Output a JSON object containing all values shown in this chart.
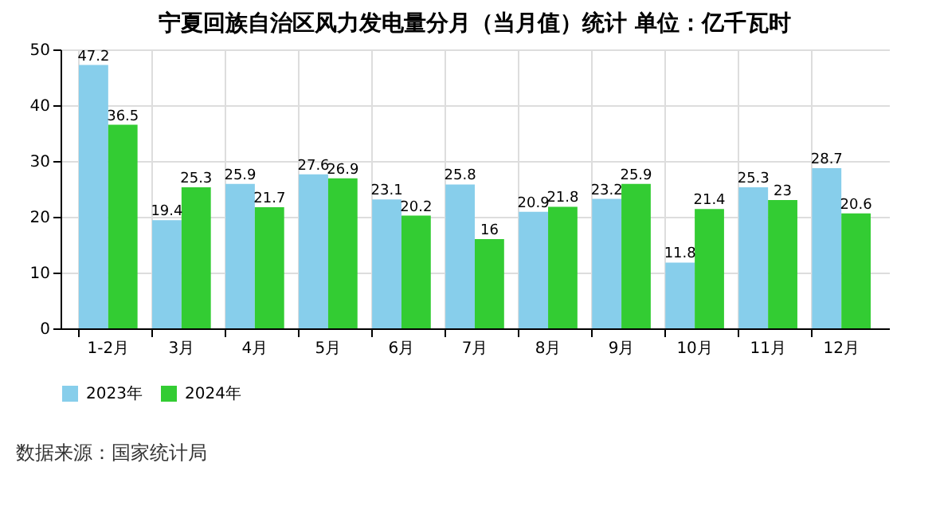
{
  "chart_data": {
    "type": "bar",
    "title": "宁夏回族自治区风力发电量分月（当月值）统计  单位：亿千瓦时",
    "categories": [
      "1-2月",
      "3月",
      "4月",
      "5月",
      "6月",
      "7月",
      "8月",
      "9月",
      "10月",
      "11月",
      "12月"
    ],
    "series": [
      {
        "name": "2023年",
        "color": "#87ceeb",
        "values": [
          47.2,
          19.4,
          25.9,
          27.6,
          23.1,
          25.8,
          20.9,
          23.2,
          11.8,
          25.3,
          28.7
        ]
      },
      {
        "name": "2024年",
        "color": "#33cc33",
        "values": [
          36.5,
          25.3,
          21.7,
          26.9,
          20.2,
          16,
          21.8,
          25.9,
          21.4,
          23,
          20.6
        ]
      }
    ],
    "ylim": [
      0,
      50
    ],
    "yticks": [
      0,
      10,
      20,
      30,
      40,
      50
    ],
    "grid": true,
    "legend": "bottom",
    "data_labels": true,
    "annotations": [
      "数据来源：国家统计局"
    ]
  }
}
